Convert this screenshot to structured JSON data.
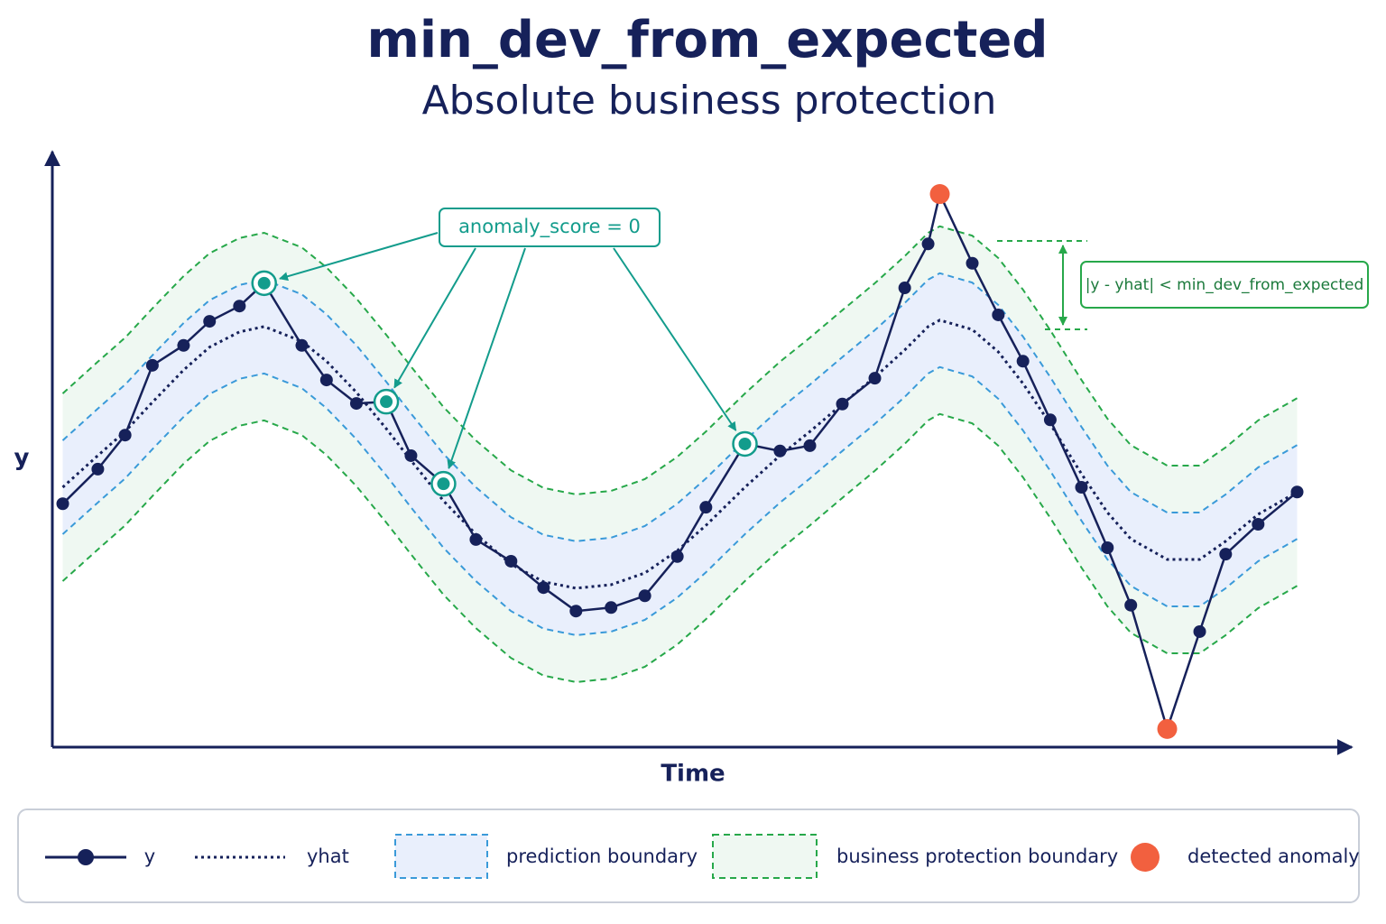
{
  "chart_data": {
    "type": "line",
    "title": "min_dev_from_expected",
    "subtitle": "Absolute business protection",
    "y_label": "y",
    "x_label": "Time",
    "xlim": [
      0,
      100
    ],
    "ylim": [
      0,
      100
    ],
    "x": [
      0.8,
      3.5,
      5.6,
      7.7,
      10.1,
      12.1,
      14.4,
      16.3,
      19.2,
      21.1,
      23.4,
      25.7,
      27.6,
      30.1,
      32.6,
      35.3,
      37.8,
      40.3,
      43.0,
      45.6,
      48.1,
      50.3,
      53.3,
      56.0,
      58.3,
      60.8,
      63.3,
      65.6,
      67.4,
      68.3,
      70.8,
      72.8,
      74.7,
      76.8,
      79.2,
      81.2,
      83.0,
      85.8,
      88.3,
      90.3,
      92.8,
      95.8
    ],
    "series": [
      {
        "name": "y",
        "color": "#16215a",
        "values": [
          41.5,
          47.4,
          53.2,
          65.1,
          68.5,
          72.6,
          75.2,
          79.1,
          68.5,
          62.6,
          58.6,
          58.9,
          49.7,
          44.9,
          35.4,
          31.7,
          27.2,
          23.2,
          23.8,
          25.8,
          32.5,
          40.9,
          51.7,
          50.5,
          51.4,
          58.5,
          62.9,
          78.3,
          85.8,
          94.3,
          82.5,
          73.7,
          65.8,
          55.8,
          44.3,
          34.0,
          24.2,
          3.1,
          19.7,
          32.9,
          38.0,
          43.5
        ]
      },
      {
        "name": "yhat",
        "color": "#16215a",
        "values": [
          44.3,
          49.7,
          53.8,
          58.8,
          64.3,
          68.2,
          70.8,
          71.7,
          69.2,
          65.8,
          60.5,
          54.3,
          48.9,
          42.0,
          36.3,
          31.2,
          28.2,
          27.1,
          27.7,
          29.7,
          33.5,
          37.8,
          44.3,
          49.7,
          53.8,
          58.5,
          63.1,
          67.7,
          71.7,
          72.8,
          71.2,
          67.4,
          62.0,
          55.1,
          46.6,
          40.0,
          35.5,
          32.0,
          32.0,
          35.1,
          39.7,
          43.5
        ]
      },
      {
        "name": "prediction boundary",
        "color": "#3a9ad9",
        "fill": "#e9effc",
        "width": 8
      },
      {
        "name": "business protection boundary",
        "color": "#27a84a",
        "fill": "#eff8f2",
        "width": 16
      },
      {
        "name": "detected anomaly",
        "color": "#f2603f",
        "x": [
          68.3,
          85.8
        ],
        "values": [
          94.3,
          3.1
        ]
      }
    ],
    "annotations": [
      {
        "text": "anomaly_score = 0",
        "points": [
          7,
          11,
          13,
          22
        ],
        "color": "#139c8c"
      },
      {
        "text": "|y - yhat| < min_dev_from_expected",
        "color": "#27a84a"
      }
    ]
  }
}
